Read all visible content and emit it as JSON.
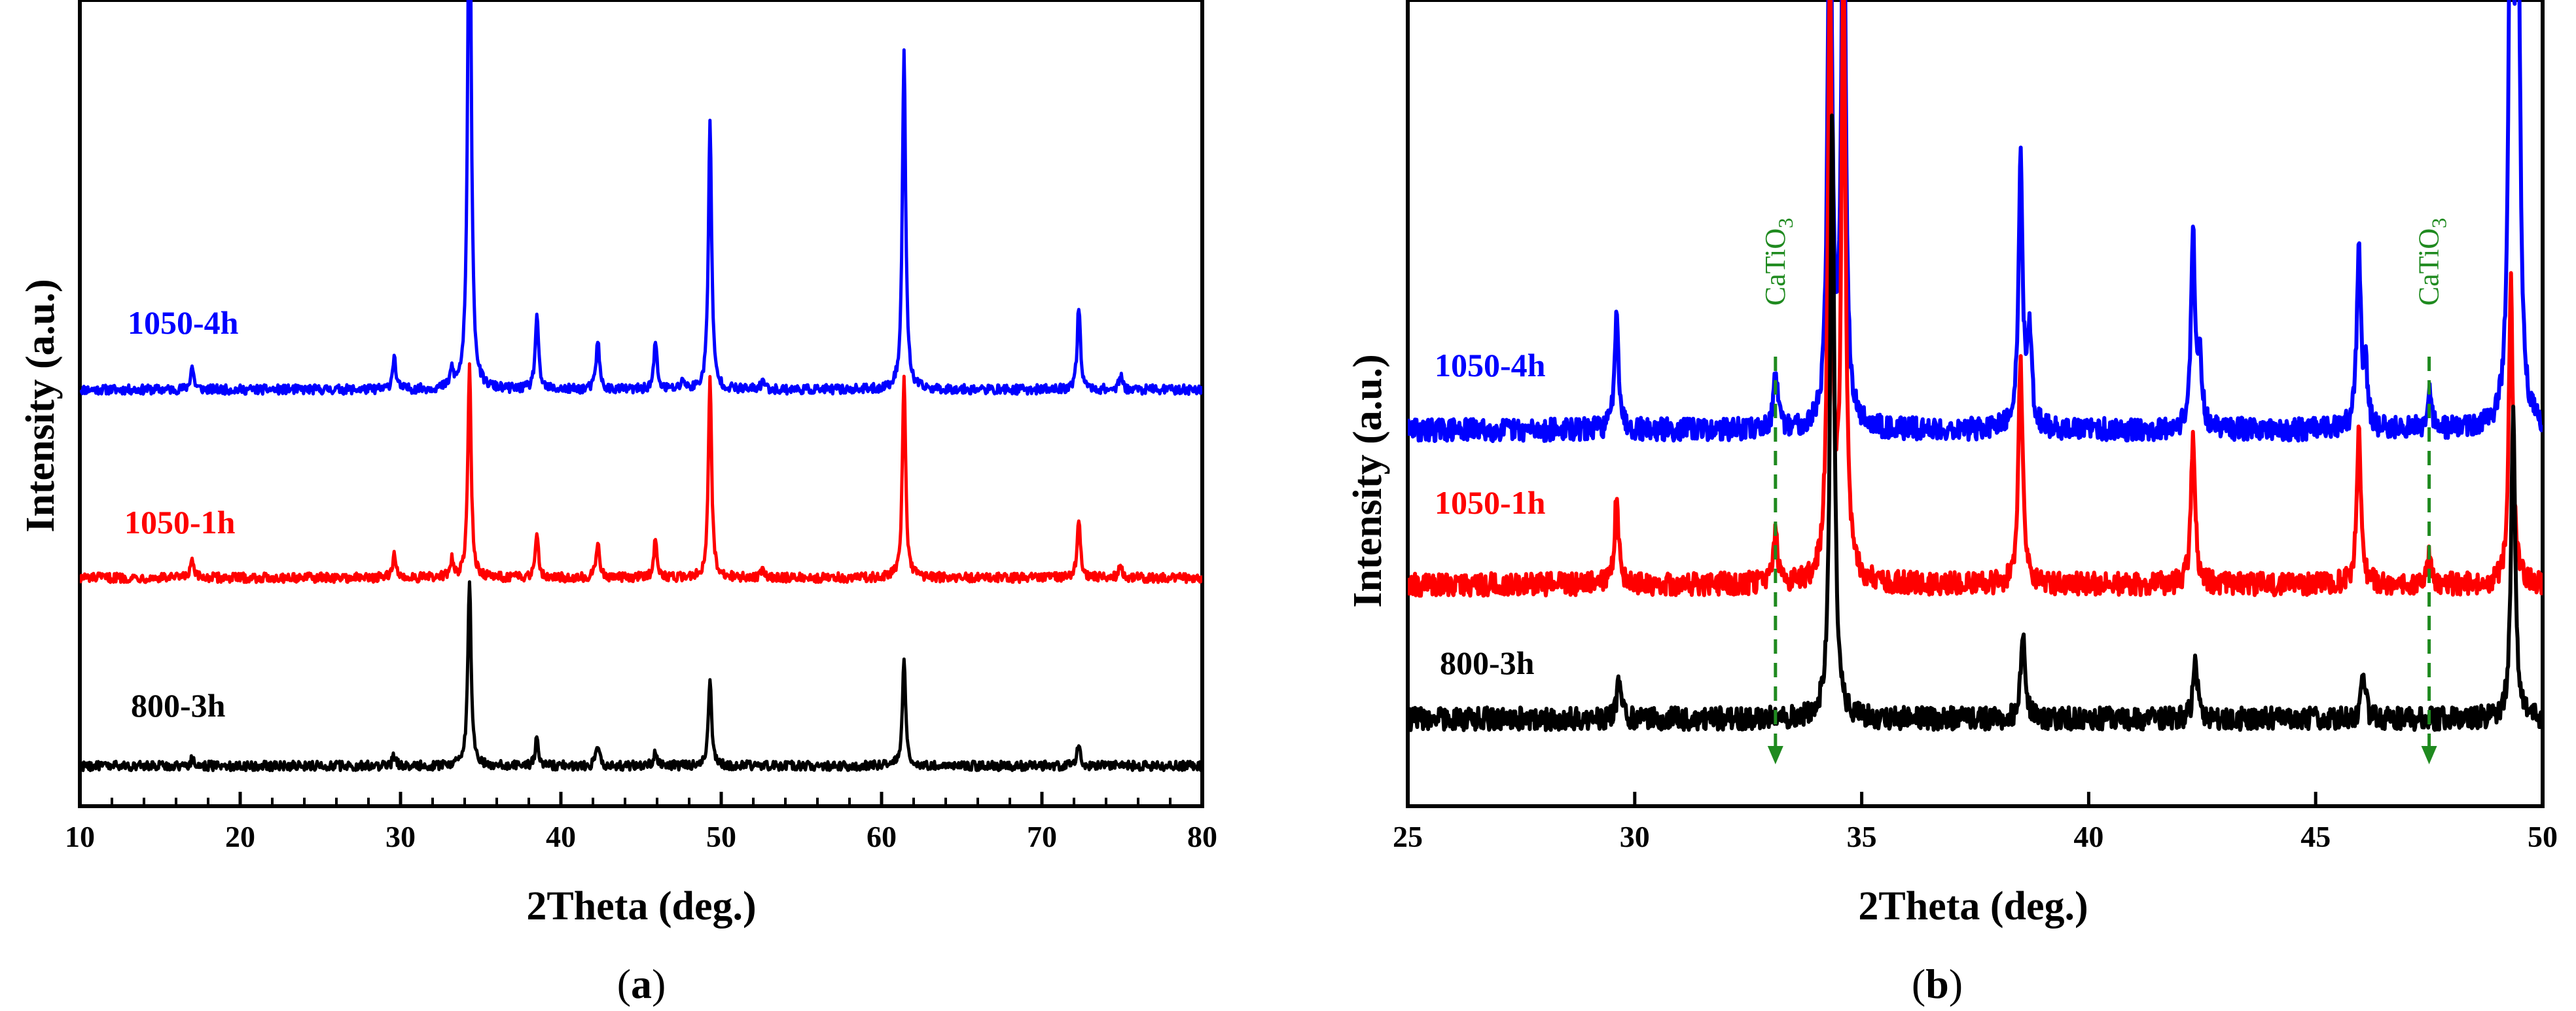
{
  "chart_data": [
    {
      "type": "line",
      "panel": "a",
      "caption": "a",
      "xlabel": "2Theta (deg.)",
      "ylabel": "Intensity (a.u.)",
      "xlim": [
        10,
        80
      ],
      "xticks": [
        10,
        20,
        30,
        40,
        50,
        60,
        70,
        80
      ],
      "ylim": [
        0,
        120
      ],
      "grid": false,
      "series": [
        {
          "name": "1050-4h",
          "color": "#0000ff",
          "baseline": 62,
          "peaks": [
            [
              17.0,
              3.5
            ],
            [
              29.6,
              5
            ],
            [
              33.2,
              2.5
            ],
            [
              34.3,
              90
            ],
            [
              38.5,
              11
            ],
            [
              42.3,
              7.5
            ],
            [
              45.9,
              7
            ],
            [
              47.6,
              1.5
            ],
            [
              49.3,
              40
            ],
            [
              52.6,
              1.5
            ],
            [
              61.4,
              51
            ],
            [
              72.3,
              12.5
            ],
            [
              74.9,
              2
            ]
          ]
        },
        {
          "name": "1050-1h",
          "color": "#ff0000",
          "baseline": 34,
          "peaks": [
            [
              17.0,
              2.5
            ],
            [
              29.6,
              3.5
            ],
            [
              33.2,
              2.5
            ],
            [
              34.3,
              32
            ],
            [
              38.5,
              7
            ],
            [
              42.3,
              5.5
            ],
            [
              45.9,
              6
            ],
            [
              49.3,
              30
            ],
            [
              52.6,
              1.5
            ],
            [
              61.4,
              30
            ],
            [
              72.3,
              9
            ],
            [
              74.9,
              2
            ]
          ]
        },
        {
          "name": "800-3h",
          "color": "#000000",
          "baseline": 6,
          "peaks": [
            [
              17.0,
              1
            ],
            [
              29.6,
              1.5
            ],
            [
              34.3,
              28
            ],
            [
              38.5,
              4
            ],
            [
              42.3,
              3
            ],
            [
              45.9,
              2.5
            ],
            [
              49.3,
              13
            ],
            [
              61.4,
              15.5
            ],
            [
              72.3,
              3.5
            ]
          ]
        }
      ]
    },
    {
      "type": "line",
      "panel": "b",
      "caption": "b",
      "xlabel": "2Theta (deg.)",
      "ylabel": "Intensity (a.u.)",
      "xlim": [
        25,
        50
      ],
      "xticks": [
        25,
        30,
        35,
        40,
        45,
        50
      ],
      "ylim": [
        0,
        120
      ],
      "grid": false,
      "annotations": [
        {
          "text": "CaTiO",
          "subscript": "3",
          "x": 33.1,
          "style": "dashed green arrow"
        },
        {
          "text": "CaTiO",
          "subscript": "3",
          "x": 47.5,
          "style": "dashed green arrow"
        }
      ],
      "series": [
        {
          "name": "1050-4h",
          "color": "#0000ff",
          "baseline": 56,
          "peaks": [
            [
              29.6,
              18
            ],
            [
              33.1,
              8
            ],
            [
              34.3,
              90
            ],
            [
              34.6,
              90
            ],
            [
              38.5,
              40
            ],
            [
              38.7,
              14
            ],
            [
              42.3,
              28
            ],
            [
              42.45,
              10
            ],
            [
              45.95,
              26
            ],
            [
              46.1,
              8
            ],
            [
              47.5,
              6
            ],
            [
              49.3,
              90
            ],
            [
              49.45,
              90
            ]
          ]
        },
        {
          "name": "1050-1h",
          "color": "#ff0000",
          "baseline": 33,
          "peaks": [
            [
              29.6,
              13
            ],
            [
              33.1,
              8
            ],
            [
              34.3,
              90
            ],
            [
              34.6,
              90
            ],
            [
              38.5,
              34
            ],
            [
              42.3,
              22
            ],
            [
              45.95,
              23
            ],
            [
              47.5,
              4
            ],
            [
              49.3,
              45
            ]
          ]
        },
        {
          "name": "800-3h",
          "color": "#000000",
          "baseline": 13,
          "peaks": [
            [
              29.65,
              6
            ],
            [
              34.35,
              90
            ],
            [
              38.55,
              13
            ],
            [
              42.35,
              9
            ],
            [
              46.05,
              7
            ],
            [
              49.35,
              45
            ]
          ]
        }
      ]
    }
  ]
}
